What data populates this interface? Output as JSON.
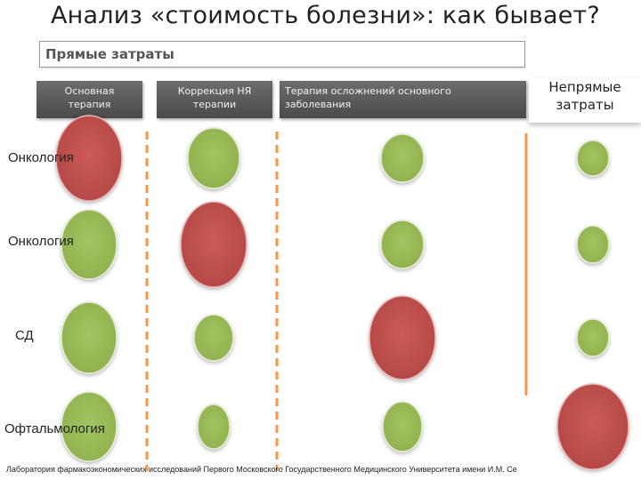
{
  "title": "Анализ «стоимость болезни»: как бывает?",
  "direct_costs": {
    "label": "Прямые затраты",
    "columns": [
      {
        "lines": [
          "Основная",
          "терапия"
        ]
      },
      {
        "lines": [
          "Коррекция НЯ",
          "терапии"
        ]
      },
      {
        "lines": [
          "Терапия осложнений основного",
          "заболевания"
        ]
      }
    ]
  },
  "indirect_costs": {
    "lines": [
      "Непрямые",
      "затраты"
    ]
  },
  "rows": [
    {
      "label": "Онкология",
      "cells": [
        {
          "size": "large",
          "color": "red"
        },
        {
          "size": "medium",
          "color": "green"
        },
        {
          "size": "small",
          "color": "green"
        },
        {
          "size": "small",
          "color": "green"
        }
      ]
    },
    {
      "label": "Онкология",
      "cells": [
        {
          "size": "medium",
          "color": "green"
        },
        {
          "size": "large",
          "color": "red"
        },
        {
          "size": "small",
          "color": "green"
        },
        {
          "size": "small",
          "color": "green"
        }
      ]
    },
    {
      "label": "СД",
      "cells": [
        {
          "size": "medium",
          "color": "green"
        },
        {
          "size": "small",
          "color": "green"
        },
        {
          "size": "large",
          "color": "red"
        },
        {
          "size": "small",
          "color": "green"
        }
      ]
    },
    {
      "label": "Офтальмология",
      "cells": [
        {
          "size": "medium",
          "color": "green"
        },
        {
          "size": "small",
          "color": "green"
        },
        {
          "size": "small",
          "color": "green"
        },
        {
          "size": "large",
          "color": "red"
        }
      ]
    }
  ],
  "colors": {
    "green": "#9bbb59",
    "green_stroke": "#e4edd2",
    "red": "#c0504d",
    "red_stroke": "#e8b9b8",
    "divider": "#f79646",
    "header_bg": "#595959"
  },
  "footer": "Лаборатория фармакоэкономических исследований Первого Московского Государственного Медицинского Университета имени И.М. Се"
}
